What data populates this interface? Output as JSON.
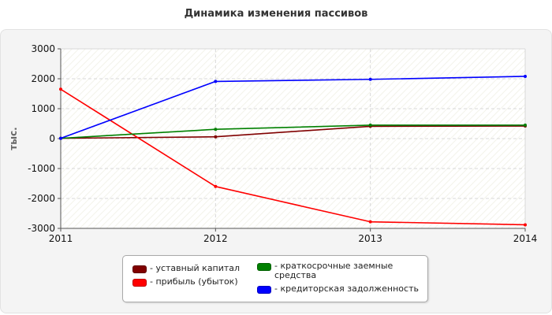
{
  "chart_data": {
    "type": "line",
    "title": "Динамика изменения пассивов",
    "ylabel": "тыс.",
    "xlabel": "",
    "categories": [
      "2011",
      "2012",
      "2013",
      "2014"
    ],
    "ylim": [
      -3000,
      3000
    ],
    "yticks": [
      3000,
      2000,
      1000,
      0,
      -1000,
      -2000,
      -3000
    ],
    "grid": true,
    "legend_position": "bottom",
    "series": [
      {
        "name": "- уставный капитал",
        "color": "#800000",
        "values": [
          10,
          60,
          410,
          420
        ]
      },
      {
        "name": "- прибыль (убыток)",
        "color": "#ff0000",
        "values": [
          1650,
          -1600,
          -2780,
          -2880
        ]
      },
      {
        "name": "- краткосрочные заемные средства",
        "color": "#008000",
        "values": [
          10,
          310,
          450,
          450
        ]
      },
      {
        "name": "- кредиторская задолженность",
        "color": "#0000ff",
        "values": [
          10,
          1910,
          1980,
          2080
        ]
      }
    ]
  }
}
